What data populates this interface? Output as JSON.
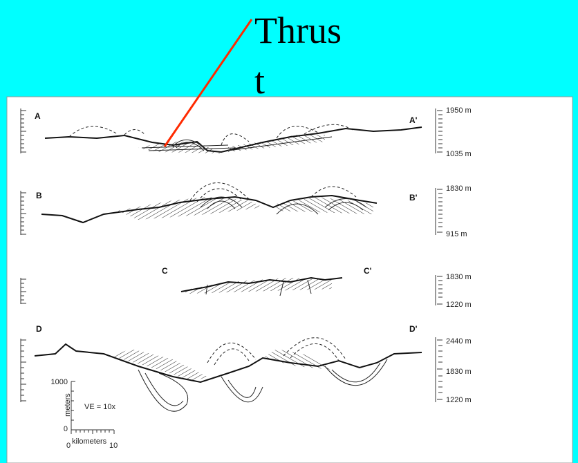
{
  "title": {
    "lines": [
      "Thrus",
      "t"
    ]
  },
  "sections": [
    {
      "left": "A",
      "right": "A'",
      "top_elevation": "1950 m",
      "bottom_elevation": "1035 m"
    },
    {
      "left": "B",
      "right": "B'",
      "top_elevation": "1830 m",
      "bottom_elevation": "915 m"
    },
    {
      "left": "C",
      "right": "C'",
      "top_elevation": "1830 m",
      "bottom_elevation": "1220 m"
    },
    {
      "left": "D",
      "right": "D'",
      "top_elevation": "2440 m",
      "middle_elevation": "1830 m",
      "bottom_elevation": "1220 m"
    }
  ],
  "scale": {
    "vertical_top": "1000",
    "vertical_bottom": "0",
    "vertical_unit": "meters",
    "exaggeration": "VE = 10x",
    "horizontal_start": "0",
    "horizontal_unit": "kilometers",
    "horizontal_end": "10"
  }
}
